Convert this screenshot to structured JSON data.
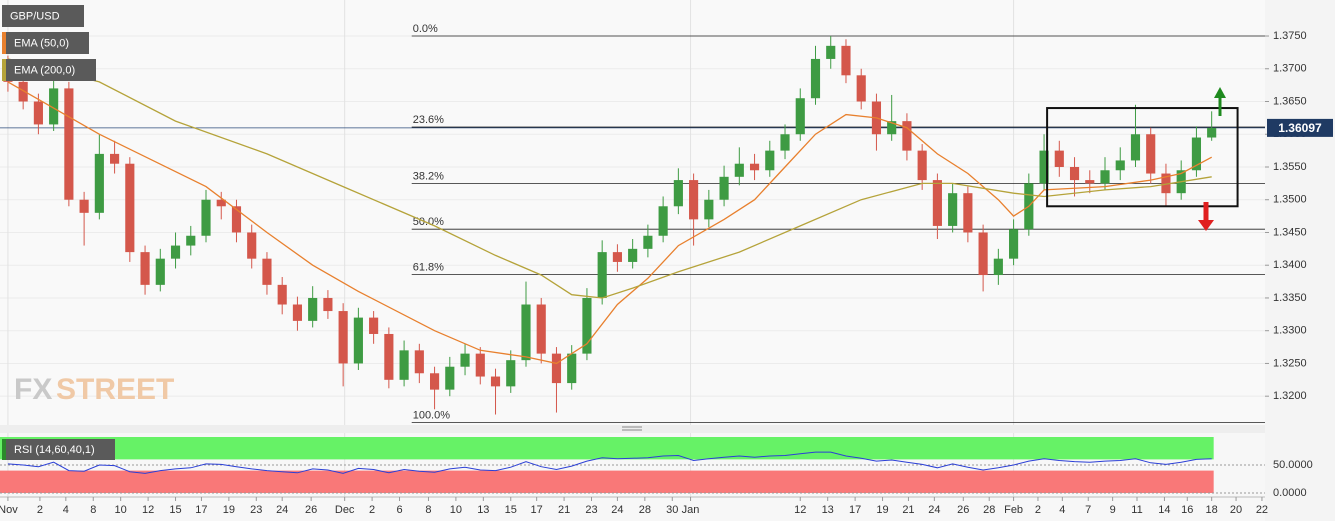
{
  "chart_data": {
    "type": "candlestick",
    "symbol": "GBP/USD",
    "ohlc": [
      [
        1.37,
        1.372,
        1.3665,
        1.368
      ],
      [
        1.368,
        1.3692,
        1.3638,
        1.365
      ],
      [
        1.365,
        1.3662,
        1.36,
        1.3615
      ],
      [
        1.3615,
        1.3685,
        1.3605,
        1.367
      ],
      [
        1.367,
        1.368,
        1.349,
        1.35
      ],
      [
        1.35,
        1.3512,
        1.343,
        1.348
      ],
      [
        1.348,
        1.36,
        1.347,
        1.357
      ],
      [
        1.357,
        1.359,
        1.354,
        1.3555
      ],
      [
        1.3555,
        1.3565,
        1.3405,
        1.342
      ],
      [
        1.342,
        1.343,
        1.3355,
        1.337
      ],
      [
        1.337,
        1.3425,
        1.336,
        1.341
      ],
      [
        1.341,
        1.345,
        1.3395,
        1.343
      ],
      [
        1.343,
        1.346,
        1.3415,
        1.3445
      ],
      [
        1.3445,
        1.3515,
        1.3435,
        1.35
      ],
      [
        1.35,
        1.3512,
        1.347,
        1.349
      ],
      [
        1.349,
        1.35,
        1.3435,
        1.345
      ],
      [
        1.345,
        1.3462,
        1.3395,
        1.341
      ],
      [
        1.341,
        1.342,
        1.3355,
        1.337
      ],
      [
        1.337,
        1.3382,
        1.3325,
        1.334
      ],
      [
        1.334,
        1.3352,
        1.33,
        1.3315
      ],
      [
        1.3315,
        1.3368,
        1.3305,
        1.335
      ],
      [
        1.335,
        1.3362,
        1.3318,
        1.333
      ],
      [
        1.333,
        1.3342,
        1.3215,
        1.325
      ],
      [
        1.325,
        1.3335,
        1.324,
        1.332
      ],
      [
        1.332,
        1.333,
        1.328,
        1.3295
      ],
      [
        1.3295,
        1.3305,
        1.3212,
        1.3225
      ],
      [
        1.3225,
        1.3285,
        1.3215,
        1.327
      ],
      [
        1.327,
        1.328,
        1.322,
        1.3235
      ],
      [
        1.3235,
        1.3245,
        1.318,
        1.321
      ],
      [
        1.321,
        1.326,
        1.32,
        1.3245
      ],
      [
        1.3245,
        1.328,
        1.3232,
        1.3265
      ],
      [
        1.3265,
        1.3275,
        1.3218,
        1.323
      ],
      [
        1.323,
        1.3242,
        1.3172,
        1.3215
      ],
      [
        1.3215,
        1.327,
        1.3205,
        1.3255
      ],
      [
        1.3255,
        1.3375,
        1.3245,
        1.334
      ],
      [
        1.334,
        1.335,
        1.325,
        1.3265
      ],
      [
        1.3265,
        1.3275,
        1.3175,
        1.322
      ],
      [
        1.322,
        1.3278,
        1.321,
        1.3265
      ],
      [
        1.3265,
        1.3365,
        1.3255,
        1.335
      ],
      [
        1.335,
        1.3438,
        1.334,
        1.342
      ],
      [
        1.342,
        1.3432,
        1.339,
        1.3405
      ],
      [
        1.3405,
        1.344,
        1.3395,
        1.3425
      ],
      [
        1.3425,
        1.3462,
        1.3412,
        1.3445
      ],
      [
        1.3445,
        1.3505,
        1.3435,
        1.349
      ],
      [
        1.349,
        1.3548,
        1.3478,
        1.353
      ],
      [
        1.353,
        1.354,
        1.343,
        1.347
      ],
      [
        1.347,
        1.3515,
        1.3458,
        1.35
      ],
      [
        1.35,
        1.3552,
        1.349,
        1.3535
      ],
      [
        1.3535,
        1.358,
        1.3522,
        1.3555
      ],
      [
        1.3555,
        1.357,
        1.353,
        1.3545
      ],
      [
        1.3545,
        1.359,
        1.3535,
        1.3575
      ],
      [
        1.3575,
        1.3615,
        1.3562,
        1.36
      ],
      [
        1.36,
        1.367,
        1.359,
        1.3655
      ],
      [
        1.3655,
        1.3735,
        1.3645,
        1.3715
      ],
      [
        1.3715,
        1.375,
        1.37,
        1.3735
      ],
      [
        1.3735,
        1.3745,
        1.3678,
        1.369
      ],
      [
        1.369,
        1.37,
        1.3638,
        1.365
      ],
      [
        1.365,
        1.3662,
        1.3575,
        1.36
      ],
      [
        1.36,
        1.366,
        1.359,
        1.362
      ],
      [
        1.362,
        1.3632,
        1.356,
        1.3575
      ],
      [
        1.3575,
        1.3585,
        1.3515,
        1.353
      ],
      [
        1.353,
        1.354,
        1.344,
        1.346
      ],
      [
        1.346,
        1.3525,
        1.345,
        1.351
      ],
      [
        1.351,
        1.352,
        1.3435,
        1.345
      ],
      [
        1.345,
        1.3462,
        1.336,
        1.3385
      ],
      [
        1.3385,
        1.3425,
        1.337,
        1.341
      ],
      [
        1.341,
        1.347,
        1.34,
        1.3455
      ],
      [
        1.3455,
        1.354,
        1.3445,
        1.3525
      ],
      [
        1.3525,
        1.36,
        1.3515,
        1.3575
      ],
      [
        1.3575,
        1.359,
        1.3535,
        1.355
      ],
      [
        1.355,
        1.3565,
        1.3505,
        1.353
      ],
      [
        1.353,
        1.3545,
        1.351,
        1.3525
      ],
      [
        1.3525,
        1.3565,
        1.3515,
        1.3545
      ],
      [
        1.3545,
        1.358,
        1.353,
        1.356
      ],
      [
        1.356,
        1.3645,
        1.355,
        1.36
      ],
      [
        1.36,
        1.361,
        1.3525,
        1.354
      ],
      [
        1.354,
        1.3555,
        1.349,
        1.351
      ],
      [
        1.351,
        1.356,
        1.35,
        1.3545
      ],
      [
        1.3545,
        1.3612,
        1.3535,
        1.3595
      ],
      [
        1.3595,
        1.3635,
        1.359,
        1.36097
      ]
    ],
    "up_color": "#3e9b43",
    "down_color": "#d4574b",
    "series": [
      {
        "name": "EMA (50,0)",
        "color": "#e8802e",
        "x": [
          0,
          6,
          13,
          17,
          20,
          23,
          28,
          31,
          34,
          36,
          38,
          40,
          42,
          44,
          47,
          49,
          51,
          53,
          55,
          57,
          59,
          61,
          63,
          65,
          66,
          67,
          68,
          72,
          75,
          77,
          79
        ],
        "values": [
          1.368,
          1.36,
          1.352,
          1.345,
          1.34,
          1.336,
          1.33,
          1.327,
          1.326,
          1.325,
          1.328,
          1.334,
          1.338,
          1.343,
          1.347,
          1.35,
          1.355,
          1.36,
          1.363,
          1.3625,
          1.361,
          1.357,
          1.354,
          1.35,
          1.3475,
          1.349,
          1.3515,
          1.352,
          1.353,
          1.354,
          1.3565
        ]
      },
      {
        "name": "EMA (200,0)",
        "color": "#b5a33a",
        "x": [
          0,
          6,
          11,
          17,
          22,
          28,
          32,
          35,
          37,
          39,
          41,
          44,
          48,
          52,
          56,
          60,
          62,
          66,
          68,
          72,
          75,
          79
        ],
        "values": [
          1.3715,
          1.368,
          1.362,
          1.357,
          1.352,
          1.346,
          1.3415,
          1.3385,
          1.3355,
          1.335,
          1.3365,
          1.339,
          1.342,
          1.346,
          1.35,
          1.3525,
          1.3525,
          1.351,
          1.3505,
          1.3515,
          1.352,
          1.3535
        ]
      }
    ],
    "last_price": 1.36097,
    "fib_from_x": 26.5,
    "fib_levels": [
      {
        "label": "0.0%",
        "price": 1.375
      },
      {
        "label": "23.6%",
        "price": 1.3611
      },
      {
        "label": "38.2%",
        "price": 1.3525
      },
      {
        "label": "50.0%",
        "price": 1.3455
      },
      {
        "label": "61.8%",
        "price": 1.3386
      },
      {
        "label": "100.0%",
        "price": 1.316
      }
    ],
    "box": {
      "x": [
        68.2,
        80.7
      ],
      "y": [
        1.349,
        1.364
      ]
    },
    "xlim": [
      -0.52,
      82.5
    ],
    "ylim": [
      1.3156,
      1.3805
    ],
    "yticks": [
      {
        "value": 1.375,
        "label": "1.3750"
      },
      {
        "value": 1.37,
        "label": "1.3700"
      },
      {
        "value": 1.365,
        "label": "1.3650"
      },
      {
        "value": 1.36,
        "label": "1.3600"
      },
      {
        "value": 1.355,
        "label": "1.3550"
      },
      {
        "value": 1.35,
        "label": "1.3500"
      },
      {
        "value": 1.345,
        "label": "1.3450"
      },
      {
        "value": 1.34,
        "label": "1.3400"
      },
      {
        "value": 1.335,
        "label": "1.3350"
      },
      {
        "value": 1.33,
        "label": "1.3300"
      },
      {
        "value": 1.325,
        "label": "1.3250"
      },
      {
        "value": 1.32,
        "label": "1.3200"
      }
    ],
    "xticks": [
      {
        "value": 0,
        "label": "Nov"
      },
      {
        "value": 2.1,
        "label": "2"
      },
      {
        "value": 3.8,
        "label": "4"
      },
      {
        "value": 5.6,
        "label": "8"
      },
      {
        "value": 7.4,
        "label": "10"
      },
      {
        "value": 9.2,
        "label": "12"
      },
      {
        "value": 11,
        "label": "15"
      },
      {
        "value": 12.7,
        "label": "17"
      },
      {
        "value": 14.5,
        "label": "19"
      },
      {
        "value": 16.3,
        "label": "23"
      },
      {
        "value": 18,
        "label": "24"
      },
      {
        "value": 19.9,
        "label": "26"
      },
      {
        "value": 22.1,
        "label": "Dec"
      },
      {
        "value": 23.9,
        "label": "2"
      },
      {
        "value": 25.7,
        "label": "6"
      },
      {
        "value": 27.6,
        "label": "8"
      },
      {
        "value": 29.4,
        "label": "10"
      },
      {
        "value": 31.2,
        "label": "13"
      },
      {
        "value": 33,
        "label": "15"
      },
      {
        "value": 34.7,
        "label": "17"
      },
      {
        "value": 36.5,
        "label": "21"
      },
      {
        "value": 38.3,
        "label": "23"
      },
      {
        "value": 40,
        "label": "24"
      },
      {
        "value": 41.8,
        "label": "28"
      },
      {
        "value": 43.6,
        "label": "30"
      },
      {
        "value": 44.8,
        "label": "Jan"
      },
      {
        "value": 52,
        "label": "12"
      },
      {
        "value": 53.8,
        "label": "13"
      },
      {
        "value": 55.6,
        "label": "17"
      },
      {
        "value": 57.4,
        "label": "19"
      },
      {
        "value": 59.1,
        "label": "21"
      },
      {
        "value": 60.8,
        "label": "24"
      },
      {
        "value": 62.7,
        "label": "26"
      },
      {
        "value": 64.4,
        "label": "28"
      },
      {
        "value": 66,
        "label": "Feb"
      },
      {
        "value": 67.6,
        "label": "2"
      },
      {
        "value": 69.2,
        "label": "4"
      },
      {
        "value": 70.9,
        "label": "7"
      },
      {
        "value": 72.5,
        "label": "9"
      },
      {
        "value": 74.1,
        "label": "11"
      },
      {
        "value": 75.9,
        "label": "14"
      },
      {
        "value": 77.4,
        "label": "16"
      },
      {
        "value": 79,
        "label": "18"
      },
      {
        "value": 80.6,
        "label": "20"
      },
      {
        "value": 82.3,
        "label": "22"
      }
    ],
    "watermark": [
      "FX",
      "STREET"
    ],
    "rsi": {
      "name": "RSI (14,60,40,1)",
      "color": "#2b3fd6",
      "ylim": [
        0,
        100
      ],
      "upper": 60,
      "lower": 40,
      "yticks": [
        {
          "value": 50,
          "label": "50.0000"
        },
        {
          "value": 0,
          "label": "0.0000"
        }
      ],
      "values": [
        52,
        50,
        47,
        55,
        40,
        39,
        50,
        49,
        38,
        35,
        40,
        43,
        45,
        52,
        51,
        47,
        43,
        40,
        38,
        36,
        43,
        41,
        35,
        44,
        42,
        36,
        42,
        39,
        37,
        43,
        46,
        41,
        40,
        46,
        56,
        47,
        42,
        48,
        57,
        63,
        61,
        62,
        63,
        66,
        67,
        58,
        61,
        64,
        66,
        64,
        66,
        67,
        70,
        73,
        73,
        66,
        62,
        57,
        59,
        55,
        51,
        45,
        52,
        46,
        41,
        45,
        50,
        57,
        61,
        58,
        56,
        55,
        57,
        58,
        61,
        54,
        51,
        55,
        60,
        61
      ]
    }
  }
}
